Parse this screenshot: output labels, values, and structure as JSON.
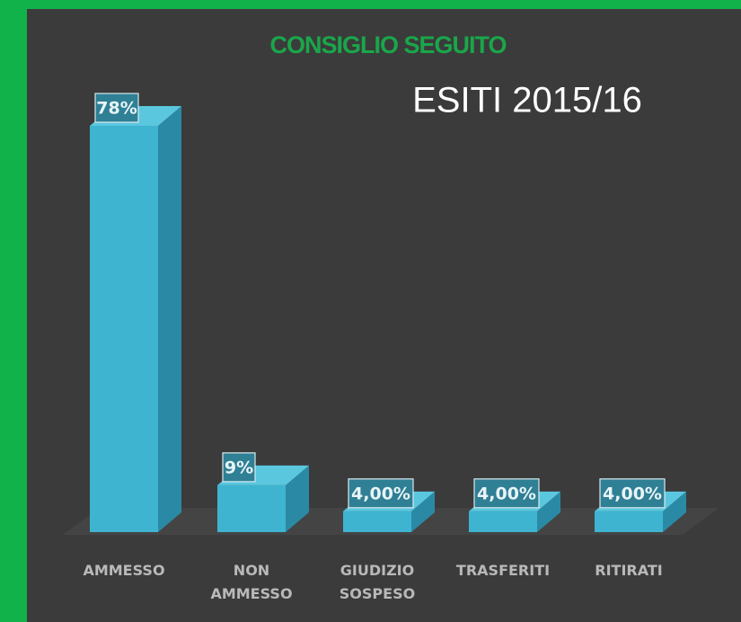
{
  "chart_data": {
    "type": "bar",
    "title": "CONSIGLIO SEGUITO",
    "subtitle": "ESITI 2015/16",
    "categories": [
      "AMMESSO",
      "NON AMMESSO",
      "GIUDIZIO SOSPESO",
      "TRASFERITI",
      "RITIRATI"
    ],
    "values": [
      78,
      9,
      4,
      4,
      4
    ],
    "value_labels": [
      "78%",
      "9%",
      "4,00%",
      "4,00%",
      "4,00%"
    ],
    "color": "#3fb4d0"
  }
}
